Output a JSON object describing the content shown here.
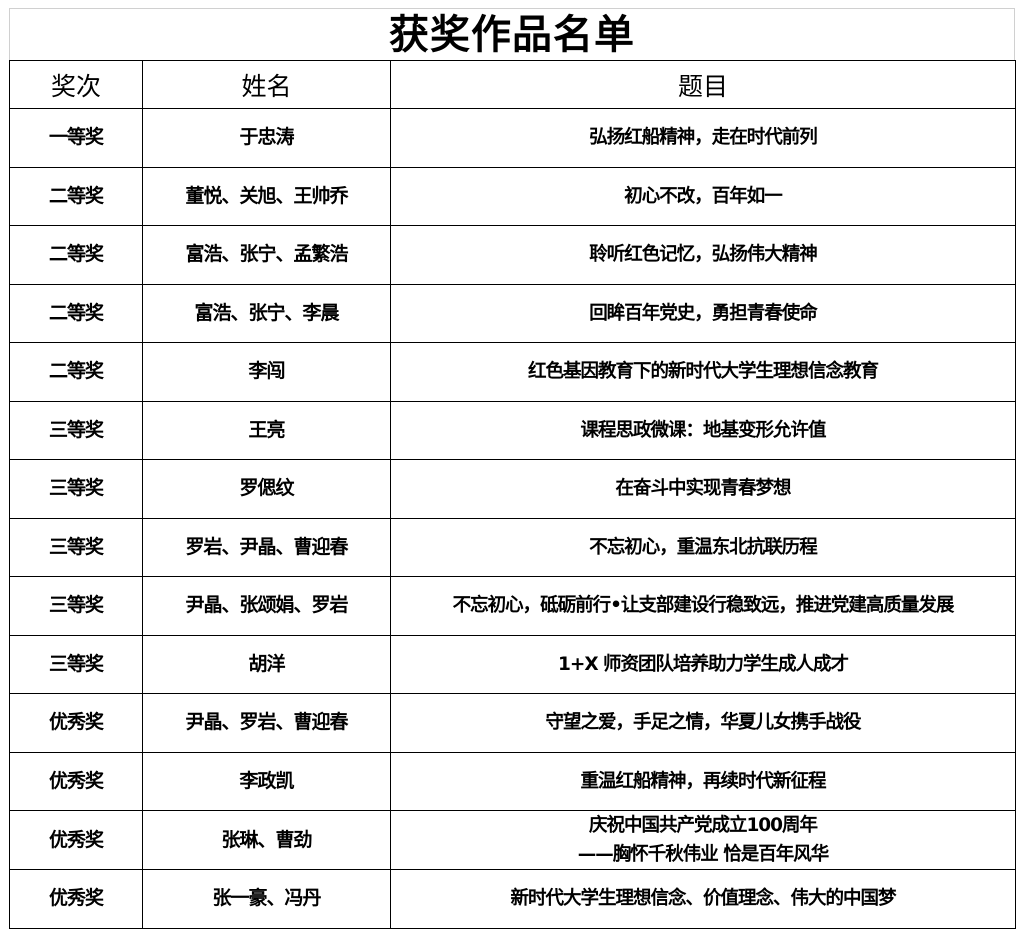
{
  "title": "获奖作品名单",
  "headers": {
    "award": "奖次",
    "name": "姓名",
    "topic": "题目"
  },
  "rows": [
    {
      "award": "一等奖",
      "name": "于忠涛",
      "topic": [
        "弘扬红船精神，走在时代前列"
      ]
    },
    {
      "award": "二等奖",
      "name": "董悦、关旭、王帅乔",
      "topic": [
        "初心不改，百年如一"
      ]
    },
    {
      "award": "二等奖",
      "name": "富浩、张宁、孟繁浩",
      "topic": [
        "聆听红色记忆，弘扬伟大精神"
      ]
    },
    {
      "award": "二等奖",
      "name": "富浩、张宁、李晨",
      "topic": [
        "回眸百年党史，勇担青春使命"
      ]
    },
    {
      "award": "二等奖",
      "name": "李闯",
      "topic": [
        "红色基因教育下的新时代大学生理想信念教育"
      ]
    },
    {
      "award": "三等奖",
      "name": "王亮",
      "topic": [
        "课程思政微课：地基变形允许值"
      ]
    },
    {
      "award": "三等奖",
      "name": "罗偲纹",
      "topic": [
        "在奋斗中实现青春梦想"
      ]
    },
    {
      "award": "三等奖",
      "name": "罗岩、尹晶、曹迎春",
      "topic": [
        "不忘初心，重温东北抗联历程"
      ]
    },
    {
      "award": "三等奖",
      "name": "尹晶、张颂娟、罗岩",
      "topic": [
        "不忘初心，砥砺前行•让支部建设行稳致远，推进党建高质量发展"
      ]
    },
    {
      "award": "三等奖",
      "name": "胡洋",
      "topic": [
        "1+X 师资团队培养助力学生成人成才"
      ]
    },
    {
      "award": "优秀奖",
      "name": "尹晶、罗岩、曹迎春",
      "topic": [
        "守望之爱，手足之情，华夏儿女携手战役"
      ]
    },
    {
      "award": "优秀奖",
      "name": "李政凯",
      "topic": [
        "重温红船精神，再续时代新征程"
      ]
    },
    {
      "award": "优秀奖",
      "name": "张琳、曹劲",
      "topic": [
        "庆祝中国共产党成立100周年",
        "——胸怀千秋伟业 恰是百年风华"
      ]
    },
    {
      "award": "优秀奖",
      "name": "张一豪、冯丹",
      "topic": [
        "新时代大学生理想信念、价值理念、伟大的中国梦"
      ]
    }
  ]
}
